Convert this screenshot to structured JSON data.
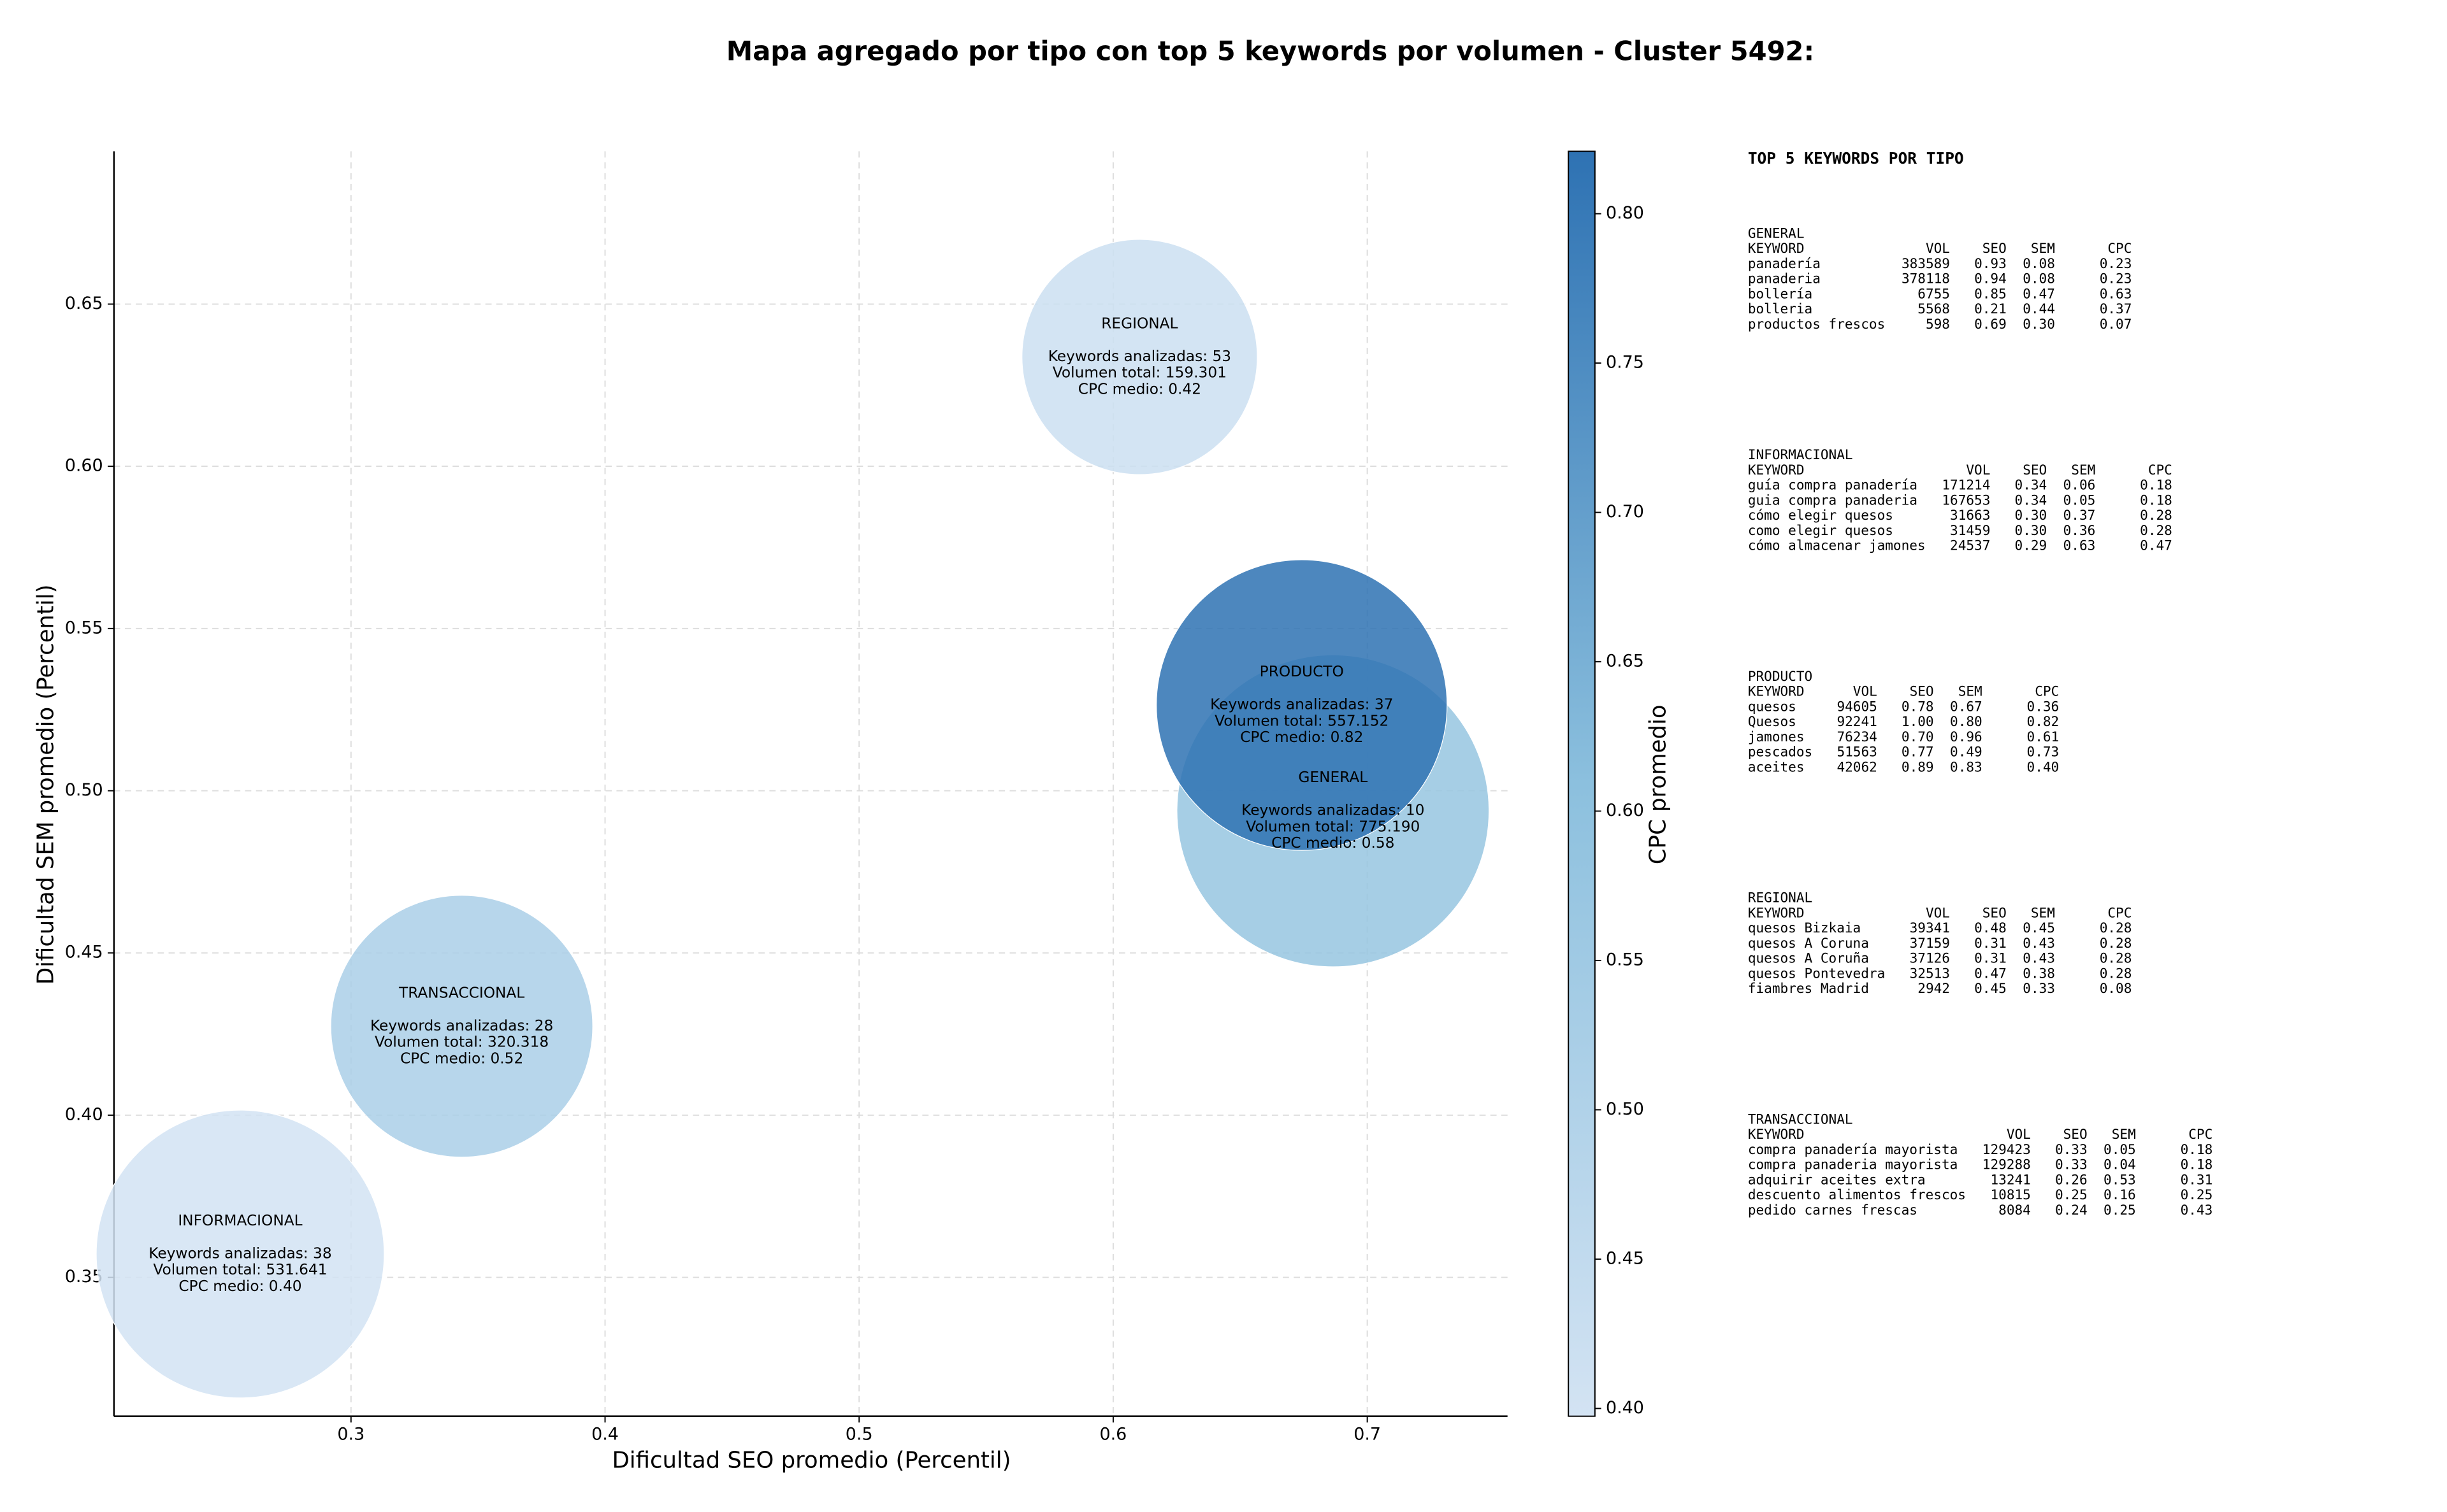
{
  "chart_data": {
    "type": "scatter",
    "title": "Mapa agregado por tipo con top 5 keywords por volumen - Cluster 5492:",
    "x_label": "Dificultad SEO promedio (Percentil)",
    "y_label": "Dificultad SEM promedio (Percentil)",
    "xlim": [
      0.2067,
      0.7552
    ],
    "xticks": [
      0.3,
      0.4,
      0.5,
      0.6,
      0.7
    ],
    "ylim": [
      0.3072,
      0.6971
    ],
    "yticks": [
      0.35,
      {
        "value": 0.4,
        "label": "0.40"
      },
      0.45,
      {
        "value": 0.5,
        "label": "0.50"
      },
      0.55,
      {
        "value": 0.6,
        "label": "0.60"
      },
      0.65
    ],
    "grid": true,
    "points": [
      {
        "name": "REGIONAL",
        "x": 0.6104,
        "y": 0.6337,
        "volume": 159301,
        "cpc": 0.42,
        "lines": [
          "Keywords analizadas: 53",
          "Volumen total: 159.301",
          "CPC medio: 0.42"
        ]
      },
      {
        "name": "GENERAL",
        "x": 0.6865,
        "y": 0.4938,
        "volume": 775190,
        "cpc": 0.58,
        "lines": [
          "Keywords analizadas: 10",
          "Volumen total: 775.190",
          "CPC medio: 0.58"
        ]
      },
      {
        "name": "PRODUCTO",
        "x": 0.6742,
        "y": 0.5264,
        "volume": 557152,
        "cpc": 0.82,
        "lines": [
          "Keywords analizadas: 37",
          "Volumen total: 557.152",
          "CPC medio: 0.82"
        ]
      },
      {
        "name": "TRANSACCIONAL",
        "x": 0.3436,
        "y": 0.4274,
        "volume": 320318,
        "cpc": 0.52,
        "lines": [
          "Keywords analizadas: 28",
          "Volumen total: 320.318",
          "CPC medio: 0.52"
        ]
      },
      {
        "name": "INFORMACIONAL",
        "x": 0.2564,
        "y": 0.3572,
        "volume": 531641,
        "cpc": 0.4,
        "lines": [
          "Keywords analizadas: 38",
          "Volumen total: 531.641",
          "CPC medio: 0.40"
        ]
      }
    ],
    "colorbar": {
      "label": "CPC promedio",
      "lim": [
        0.3974,
        0.8209
      ],
      "ticks": [
        {
          "value": 0.4,
          "label": "0.40"
        },
        0.45,
        {
          "value": 0.5,
          "label": "0.50"
        },
        0.55,
        {
          "value": 0.6,
          "label": "0.60"
        },
        0.65,
        {
          "value": 0.7,
          "label": "0.70"
        },
        0.75,
        {
          "value": 0.8,
          "label": "0.80"
        }
      ],
      "colors": [
        "#d3e3f3",
        "#8cc0de",
        "#2e72b3"
      ]
    }
  },
  "tables": {
    "title": "TOP 5 KEYWORDS POR TIPO",
    "columns": [
      "KEYWORD",
      "VOL",
      "SEO",
      "SEM",
      "CPC"
    ],
    "groups": [
      {
        "name": "GENERAL",
        "rows": [
          [
            "panadería",
            "383589",
            "0.93",
            "0.08",
            "0.23"
          ],
          [
            "panaderia",
            "378118",
            "0.94",
            "0.08",
            "0.23"
          ],
          [
            "bollería",
            "6755",
            "0.85",
            "0.47",
            "0.63"
          ],
          [
            "bolleria",
            "5568",
            "0.21",
            "0.44",
            "0.37"
          ],
          [
            "productos frescos",
            "598",
            "0.69",
            "0.30",
            "0.07"
          ]
        ]
      },
      {
        "name": "INFORMACIONAL",
        "rows": [
          [
            "guía compra panadería",
            "171214",
            "0.34",
            "0.06",
            "0.18"
          ],
          [
            "guia compra panaderia",
            "167653",
            "0.34",
            "0.05",
            "0.18"
          ],
          [
            "cómo elegir quesos",
            "31663",
            "0.30",
            "0.37",
            "0.28"
          ],
          [
            "como elegir quesos",
            "31459",
            "0.30",
            "0.36",
            "0.28"
          ],
          [
            "cómo almacenar jamones",
            "24537",
            "0.29",
            "0.63",
            "0.47"
          ]
        ]
      },
      {
        "name": "PRODUCTO",
        "rows": [
          [
            "quesos",
            "94605",
            "0.78",
            "0.67",
            "0.36"
          ],
          [
            "Quesos",
            "92241",
            "1.00",
            "0.80",
            "0.82"
          ],
          [
            "jamones",
            "76234",
            "0.70",
            "0.96",
            "0.61"
          ],
          [
            "pescados",
            "51563",
            "0.77",
            "0.49",
            "0.73"
          ],
          [
            "aceites",
            "42062",
            "0.89",
            "0.83",
            "0.40"
          ]
        ]
      },
      {
        "name": "REGIONAL",
        "rows": [
          [
            "quesos Bizkaia",
            "39341",
            "0.48",
            "0.45",
            "0.28"
          ],
          [
            "quesos A Coruna",
            "37159",
            "0.31",
            "0.43",
            "0.28"
          ],
          [
            "quesos A Coruña",
            "37126",
            "0.31",
            "0.43",
            "0.28"
          ],
          [
            "quesos Pontevedra",
            "32513",
            "0.47",
            "0.38",
            "0.28"
          ],
          [
            "fiambres Madrid",
            "2942",
            "0.45",
            "0.33",
            "0.08"
          ]
        ]
      },
      {
        "name": "TRANSACCIONAL",
        "rows": [
          [
            "compra panadería mayorista",
            "129423",
            "0.33",
            "0.05",
            "0.18"
          ],
          [
            "compra panaderia mayorista",
            "129288",
            "0.33",
            "0.04",
            "0.18"
          ],
          [
            "adquirir aceites extra",
            "13241",
            "0.26",
            "0.53",
            "0.31"
          ],
          [
            "descuento alimentos frescos",
            "10815",
            "0.25",
            "0.16",
            "0.25"
          ],
          [
            "pedido carnes frescas",
            "8084",
            "0.24",
            "0.25",
            "0.43"
          ]
        ]
      }
    ]
  }
}
